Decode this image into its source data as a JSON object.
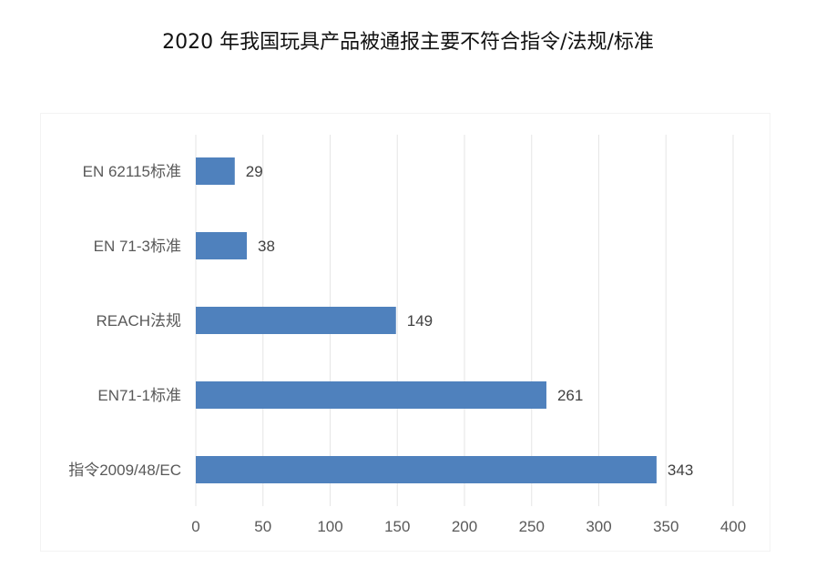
{
  "chart_data": {
    "type": "bar",
    "orientation": "horizontal",
    "title": "2020 年我国玩具产品被通报主要不符合指令/法规/标准",
    "categories": [
      "EN 62115标准",
      "EN 71-3标准",
      "REACH法规",
      "EN71-1标准",
      "指令2009/48/EC"
    ],
    "values": [
      29,
      38,
      149,
      261,
      343
    ],
    "data_labels": [
      "29",
      "38",
      "149",
      "261",
      "343"
    ],
    "xlim": [
      0,
      400
    ],
    "x_ticks": [
      "0",
      "50",
      "100",
      "150",
      "200",
      "250",
      "300",
      "350",
      "400"
    ],
    "grid": true,
    "legend": "none",
    "bar_color": "#4f81bd"
  }
}
